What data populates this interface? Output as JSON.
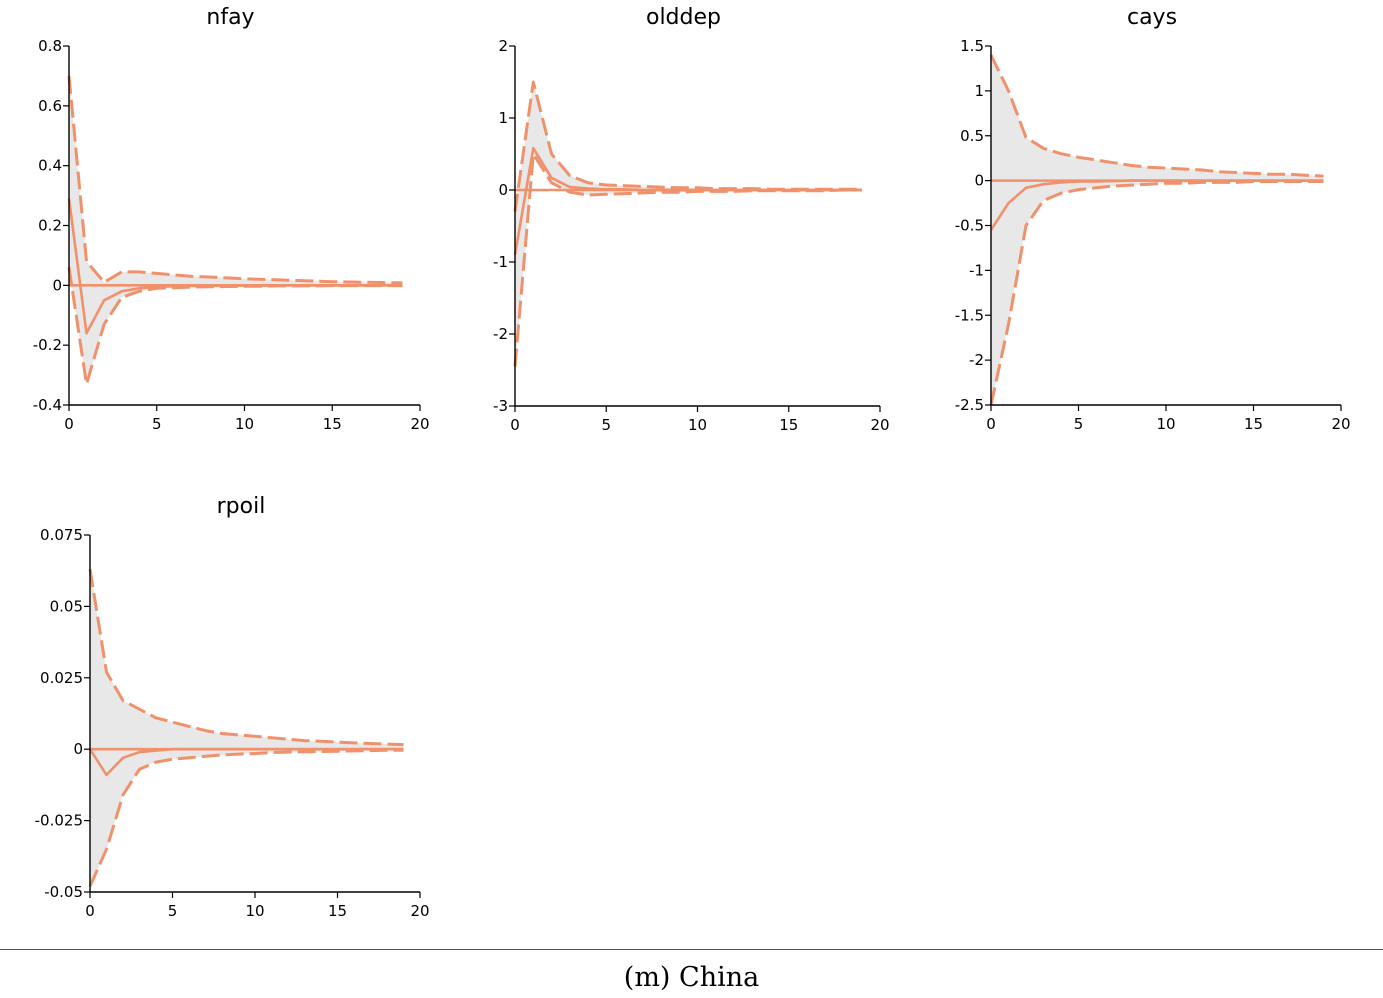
{
  "caption": "(m) China",
  "colors": {
    "line": "#f0916b",
    "band": "#e8e8e8"
  },
  "chart_data": [
    {
      "type": "line",
      "title": "nfay",
      "xlabel": "",
      "ylabel": "",
      "xlim": [
        0,
        20
      ],
      "ylim": [
        -0.4,
        0.8
      ],
      "xticks": [
        0,
        5,
        10,
        15,
        20
      ],
      "yticks": [
        -0.4,
        -0.2,
        0,
        0.2,
        0.4,
        0.6,
        0.8
      ],
      "ytick_labels": [
        "-0.4",
        "-0.2",
        "0",
        "0.2",
        "0.4",
        "0.6",
        "0.8"
      ],
      "grid": false,
      "x": [
        0,
        1,
        2,
        3,
        4,
        5,
        6,
        7,
        8,
        9,
        10,
        11,
        12,
        13,
        14,
        15,
        16,
        17,
        18,
        19
      ],
      "series": [
        {
          "role": "upper",
          "values": [
            0.7,
            0.08,
            0.01,
            0.045,
            0.045,
            0.04,
            0.035,
            0.03,
            0.028,
            0.025,
            0.022,
            0.02,
            0.018,
            0.016,
            0.014,
            0.012,
            0.011,
            0.01,
            0.009,
            0.008
          ]
        },
        {
          "role": "median",
          "values": [
            0.29,
            -0.16,
            -0.05,
            -0.02,
            -0.01,
            -0.005,
            -0.003,
            -0.002,
            -0.002,
            -0.001,
            -0.001,
            -0.001,
            0,
            0,
            0,
            0,
            0,
            0,
            0,
            0
          ]
        },
        {
          "role": "lower",
          "values": [
            0.06,
            -0.33,
            -0.13,
            -0.04,
            -0.02,
            -0.01,
            -0.008,
            -0.006,
            -0.005,
            -0.004,
            -0.003,
            -0.003,
            -0.002,
            -0.002,
            -0.002,
            -0.001,
            -0.001,
            -0.001,
            -0.001,
            -0.001
          ]
        },
        {
          "role": "zero",
          "values": [
            0,
            0,
            0,
            0,
            0,
            0,
            0,
            0,
            0,
            0,
            0,
            0,
            0,
            0,
            0,
            0,
            0,
            0,
            0,
            0
          ]
        }
      ]
    },
    {
      "type": "line",
      "title": "olddep",
      "xlabel": "",
      "ylabel": "",
      "xlim": [
        0,
        20
      ],
      "ylim": [
        -3,
        2
      ],
      "xticks": [
        0,
        5,
        10,
        15,
        20
      ],
      "yticks": [
        -3,
        -2,
        -1,
        0,
        1,
        2
      ],
      "ytick_labels": [
        "-3",
        "-2",
        "-1",
        "0",
        "1",
        "2"
      ],
      "grid": false,
      "x": [
        0,
        1,
        2,
        3,
        4,
        5,
        6,
        7,
        8,
        9,
        10,
        11,
        12,
        13,
        14,
        15,
        16,
        17,
        18,
        19
      ],
      "series": [
        {
          "role": "upper",
          "values": [
            -0.3,
            1.5,
            0.5,
            0.2,
            0.1,
            0.07,
            0.06,
            0.05,
            0.04,
            0.03,
            0.03,
            0.02,
            0.02,
            0.02,
            0.01,
            0.01,
            0.01,
            0.01,
            0.01,
            0.01
          ]
        },
        {
          "role": "median",
          "values": [
            -0.9,
            0.58,
            0.17,
            0.04,
            0.02,
            0.01,
            0.01,
            0,
            0,
            0,
            0,
            0,
            0,
            0,
            0,
            0,
            0,
            0,
            0,
            0
          ]
        },
        {
          "role": "lower",
          "values": [
            -2.45,
            0.5,
            0.1,
            -0.03,
            -0.07,
            -0.06,
            -0.05,
            -0.04,
            -0.03,
            -0.03,
            -0.02,
            -0.02,
            -0.02,
            -0.01,
            -0.01,
            -0.01,
            -0.01,
            -0.01,
            0,
            0
          ]
        },
        {
          "role": "zero",
          "values": [
            0,
            0,
            0,
            0,
            0,
            0,
            0,
            0,
            0,
            0,
            0,
            0,
            0,
            0,
            0,
            0,
            0,
            0,
            0,
            0
          ]
        }
      ]
    },
    {
      "type": "line",
      "title": "cays",
      "xlabel": "",
      "ylabel": "",
      "xlim": [
        0,
        20
      ],
      "ylim": [
        -2.5,
        1.5
      ],
      "xticks": [
        0,
        5,
        10,
        15,
        20
      ],
      "yticks": [
        -2.5,
        -2,
        -1.5,
        -1,
        -0.5,
        0,
        0.5,
        1,
        1.5
      ],
      "ytick_labels": [
        "-2.5",
        "-2",
        "-1.5",
        "-1",
        "-0.5",
        "0",
        "0.5",
        "1",
        "1.5"
      ],
      "grid": false,
      "x": [
        0,
        1,
        2,
        3,
        4,
        5,
        6,
        7,
        8,
        9,
        10,
        11,
        12,
        13,
        14,
        15,
        16,
        17,
        18,
        19
      ],
      "series": [
        {
          "role": "upper",
          "values": [
            1.4,
            1.0,
            0.48,
            0.36,
            0.3,
            0.26,
            0.23,
            0.2,
            0.17,
            0.15,
            0.14,
            0.13,
            0.12,
            0.1,
            0.09,
            0.08,
            0.07,
            0.07,
            0.06,
            0.05
          ]
        },
        {
          "role": "median",
          "values": [
            -0.55,
            -0.25,
            -0.08,
            -0.04,
            -0.02,
            -0.01,
            -0.01,
            -0.005,
            0,
            0,
            0,
            0,
            0,
            0,
            0,
            0,
            0,
            0,
            0,
            0
          ]
        },
        {
          "role": "lower",
          "values": [
            -2.5,
            -1.6,
            -0.5,
            -0.22,
            -0.14,
            -0.1,
            -0.08,
            -0.06,
            -0.05,
            -0.04,
            -0.03,
            -0.03,
            -0.02,
            -0.02,
            -0.02,
            -0.01,
            -0.01,
            -0.01,
            -0.01,
            -0.01
          ]
        },
        {
          "role": "zero",
          "values": [
            0,
            0,
            0,
            0,
            0,
            0,
            0,
            0,
            0,
            0,
            0,
            0,
            0,
            0,
            0,
            0,
            0,
            0,
            0,
            0
          ]
        }
      ]
    },
    {
      "type": "line",
      "title": "rpoil",
      "xlabel": "",
      "ylabel": "",
      "xlim": [
        0,
        20
      ],
      "ylim": [
        -0.05,
        0.075
      ],
      "xticks": [
        0,
        5,
        10,
        15,
        20
      ],
      "yticks": [
        -0.05,
        -0.025,
        0,
        0.025,
        0.05,
        0.075
      ],
      "ytick_labels": [
        "-0.05",
        "-0.025",
        "0",
        "0.025",
        "0.05",
        "0.075"
      ],
      "grid": false,
      "x": [
        0,
        1,
        2,
        3,
        4,
        5,
        6,
        7,
        8,
        9,
        10,
        11,
        12,
        13,
        14,
        15,
        16,
        17,
        18,
        19
      ],
      "series": [
        {
          "role": "upper",
          "values": [
            0.063,
            0.027,
            0.017,
            0.014,
            0.011,
            0.0095,
            0.008,
            0.0065,
            0.0055,
            0.005,
            0.0045,
            0.004,
            0.0035,
            0.003,
            0.0028,
            0.0025,
            0.0022,
            0.002,
            0.0018,
            0.0016
          ]
        },
        {
          "role": "median",
          "values": [
            0,
            -0.009,
            -0.003,
            -0.001,
            -0.0005,
            0,
            0,
            0,
            0,
            0,
            0,
            0,
            0,
            0,
            0,
            0,
            0,
            0,
            0,
            0
          ]
        },
        {
          "role": "lower",
          "values": [
            -0.048,
            -0.035,
            -0.016,
            -0.007,
            -0.0045,
            -0.0035,
            -0.003,
            -0.0025,
            -0.002,
            -0.0017,
            -0.0015,
            -0.0012,
            -0.001,
            -0.0009,
            -0.0008,
            -0.0007,
            -0.0006,
            -0.0005,
            -0.0004,
            -0.0004
          ]
        },
        {
          "role": "zero",
          "values": [
            0,
            0,
            0,
            0,
            0,
            0,
            0,
            0,
            0,
            0,
            0,
            0,
            0,
            0,
            0,
            0,
            0,
            0,
            0,
            0
          ]
        }
      ]
    }
  ]
}
